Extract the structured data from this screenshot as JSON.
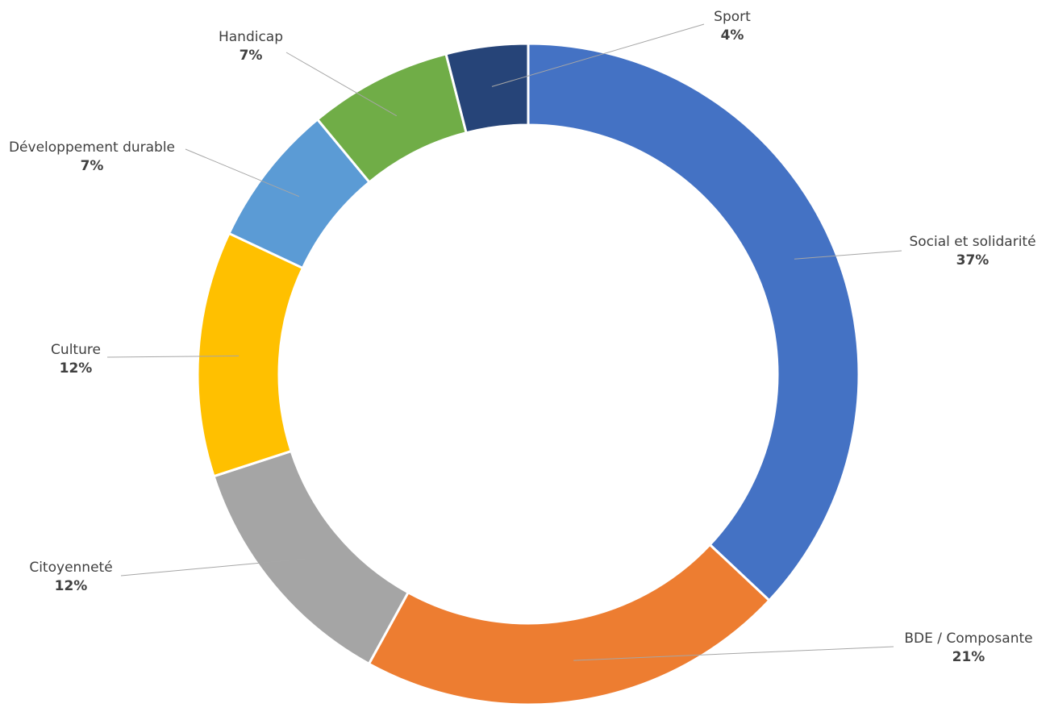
{
  "chart_data": {
    "type": "pie",
    "variant": "doughnut",
    "title": "",
    "legend": "none",
    "slices": [
      {
        "label": "Social et solidarité",
        "value": 37,
        "display": "37%",
        "color": "#4472C4"
      },
      {
        "label": "BDE / Composante",
        "value": 21,
        "display": "21%",
        "color": "#ED7D31"
      },
      {
        "label": "Citoyenneté",
        "value": 12,
        "display": "12%",
        "color": "#A5A5A5"
      },
      {
        "label": "Culture",
        "value": 12,
        "display": "12%",
        "color": "#FFC000"
      },
      {
        "label": "Développement durable",
        "value": 7,
        "display": "7%",
        "color": "#5B9BD5"
      },
      {
        "label": "Handicap",
        "value": 7,
        "display": "7%",
        "color": "#70AD47"
      },
      {
        "label": "Sport",
        "value": 4,
        "display": "4%",
        "color": "#264478"
      }
    ]
  }
}
